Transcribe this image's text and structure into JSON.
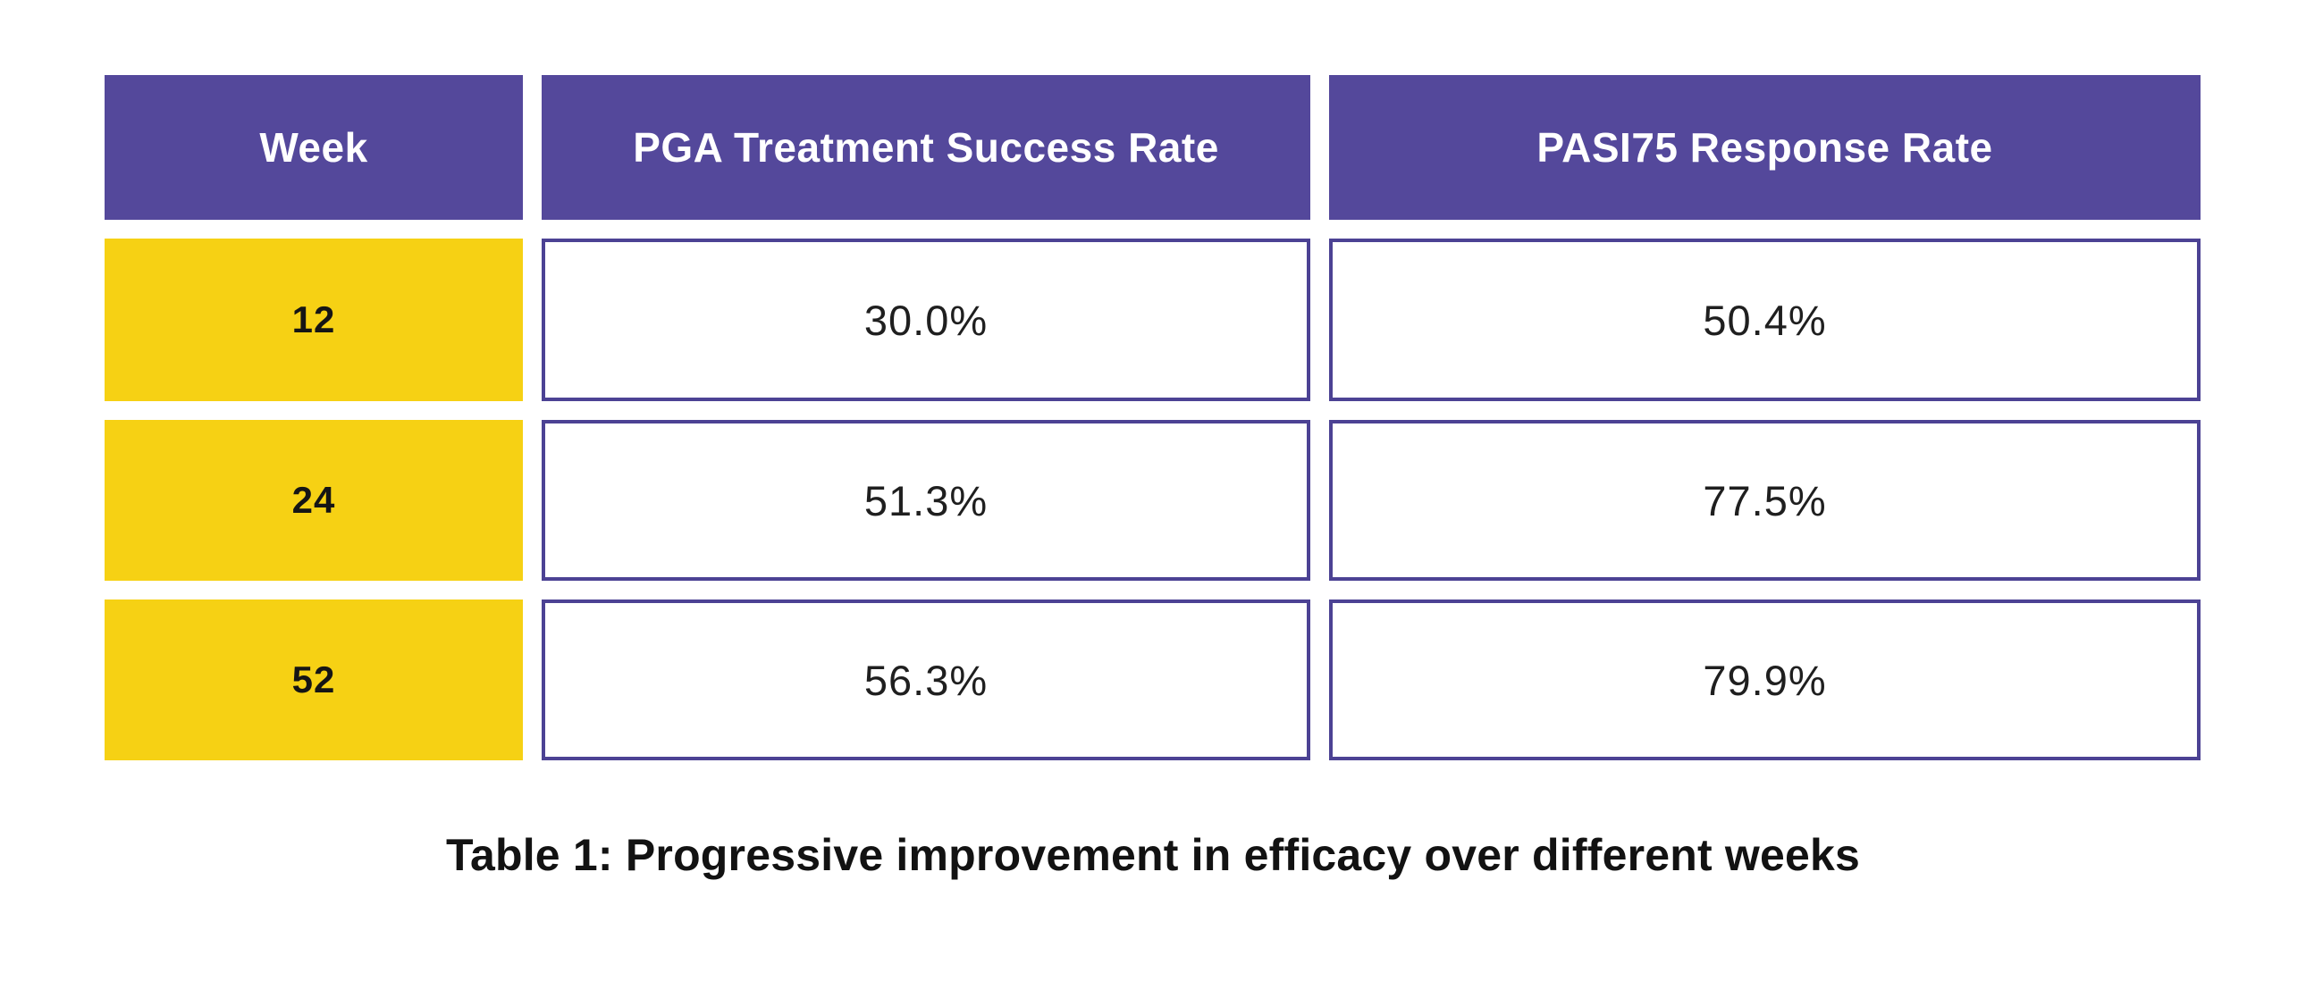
{
  "caption": "Table 1: Progressive improvement in efficacy over different weeks",
  "table": {
    "columns": [
      {
        "label": "Week"
      },
      {
        "label": "PGA Treatment Success Rate"
      },
      {
        "label": "PASI75 Response Rate"
      }
    ],
    "rows": [
      {
        "week": "12",
        "pga": "30.0%",
        "pasi": "50.4%"
      },
      {
        "week": "24",
        "pga": "51.3%",
        "pasi": "77.5%"
      },
      {
        "week": "52",
        "pga": "56.3%",
        "pasi": "79.9%"
      }
    ]
  },
  "chart_data": {
    "type": "table",
    "title": "Table 1: Progressive improvement in efficacy over different weeks",
    "columns": [
      "Week",
      "PGA Treatment Success Rate",
      "PASI75 Response Rate"
    ],
    "rows": [
      [
        "12",
        "30.0%",
        "50.4%"
      ],
      [
        "24",
        "51.3%",
        "77.5%"
      ],
      [
        "52",
        "56.3%",
        "79.9%"
      ]
    ],
    "x": [
      12,
      24,
      52
    ],
    "series": [
      {
        "name": "PGA Treatment Success Rate",
        "values": [
          30.0,
          51.3,
          56.3
        ]
      },
      {
        "name": "PASI75 Response Rate",
        "values": [
          50.4,
          77.5,
          79.9
        ]
      }
    ],
    "unit": "%"
  },
  "colors": {
    "header_bg": "#54489B",
    "header_text": "#FFFFFF",
    "week_bg": "#F6D114",
    "value_border": "#4C4294",
    "value_text": "#1F1F1F",
    "caption_text": "#121212",
    "background": "#FFFFFF"
  }
}
